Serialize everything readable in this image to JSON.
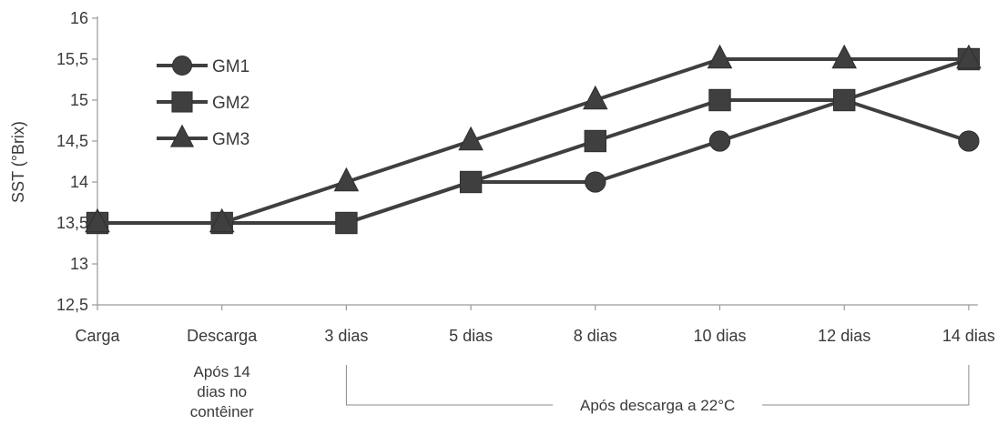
{
  "chart_data": {
    "type": "line",
    "categories": [
      "Carga",
      "Descarga",
      "3 dias",
      "5 dias",
      "8 dias",
      "10 dias",
      "12 dias",
      "14 dias"
    ],
    "ylabel": "SST (°Brix)",
    "ylim": [
      12.5,
      16
    ],
    "yticks": [
      "12,5",
      "13",
      "13,5",
      "14",
      "14,5",
      "15",
      "15,5",
      "16"
    ],
    "grid": false,
    "legend_position": "top-left",
    "series": [
      {
        "name": "GM1",
        "marker": "circle",
        "values": [
          13.5,
          13.5,
          13.5,
          14.0,
          14.0,
          14.5,
          15.0,
          14.5
        ]
      },
      {
        "name": "GM2",
        "marker": "square",
        "values": [
          13.5,
          13.5,
          13.5,
          14.0,
          14.5,
          15.0,
          15.0,
          15.5
        ]
      },
      {
        "name": "GM3",
        "marker": "triangle",
        "values": [
          13.5,
          13.5,
          14.0,
          14.5,
          15.0,
          15.5,
          15.5,
          15.5
        ]
      }
    ],
    "annotations": {
      "container_note_lines": [
        "Após 14",
        "dias no",
        "contêiner"
      ],
      "bracket_label": "Após descarga a 22°C"
    }
  }
}
